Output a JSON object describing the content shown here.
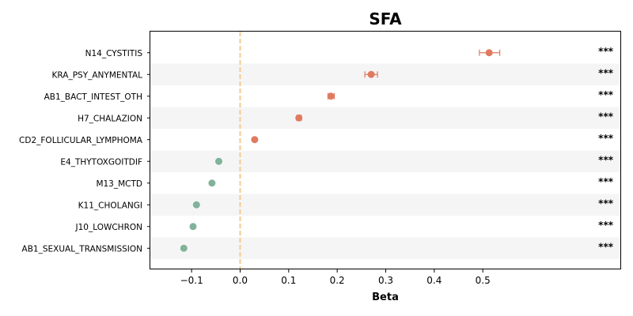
{
  "chart_data": {
    "type": "scatter",
    "title": "SFA",
    "xlabel": "Beta",
    "ylabel": "",
    "xlim": [
      -0.185,
      0.785
    ],
    "xticks": [
      -0.1,
      0.0,
      0.1,
      0.2,
      0.3,
      0.4,
      0.5
    ],
    "xtick_labels": [
      "−0.1",
      "0.0",
      "0.1",
      "0.2",
      "0.3",
      "0.4",
      "0.5"
    ],
    "reference_line": 0.0,
    "grid": false,
    "colors": {
      "positive": "#e07a5f",
      "negative": "#81b29a",
      "reference": "#f2cc8f",
      "band": "#f5f5f5"
    },
    "rows": [
      {
        "label": "N14_CYSTITIS",
        "beta": 0.513,
        "ci_low": 0.493,
        "ci_high": 0.535,
        "significance": "***"
      },
      {
        "label": "KRA_PSY_ANYMENTAL",
        "beta": 0.27,
        "ci_low": 0.257,
        "ci_high": 0.283,
        "significance": "***"
      },
      {
        "label": "AB1_BACT_INTEST_OTH",
        "beta": 0.187,
        "ci_low": 0.181,
        "ci_high": 0.194,
        "significance": "***"
      },
      {
        "label": "H7_CHALAZION",
        "beta": 0.121,
        "ci_low": 0.117,
        "ci_high": 0.126,
        "significance": "***"
      },
      {
        "label": "CD2_FOLLICULAR_LYMPHOMA",
        "beta": 0.03,
        "ci_low": 0.029,
        "ci_high": 0.031,
        "significance": "***"
      },
      {
        "label": "E4_THYTOXGOITDIF",
        "beta": -0.044,
        "ci_low": -0.045,
        "ci_high": -0.043,
        "significance": "***"
      },
      {
        "label": "M13_MCTD",
        "beta": -0.058,
        "ci_low": -0.059,
        "ci_high": -0.057,
        "significance": "***"
      },
      {
        "label": "K11_CHOLANGI",
        "beta": -0.09,
        "ci_low": -0.091,
        "ci_high": -0.089,
        "significance": "***"
      },
      {
        "label": "J10_LOWCHRON",
        "beta": -0.097,
        "ci_low": -0.1,
        "ci_high": -0.094,
        "significance": "***"
      },
      {
        "label": "AB1_SEXUAL_TRANSMISSION",
        "beta": -0.116,
        "ci_low": -0.118,
        "ci_high": -0.114,
        "significance": "***"
      }
    ]
  }
}
